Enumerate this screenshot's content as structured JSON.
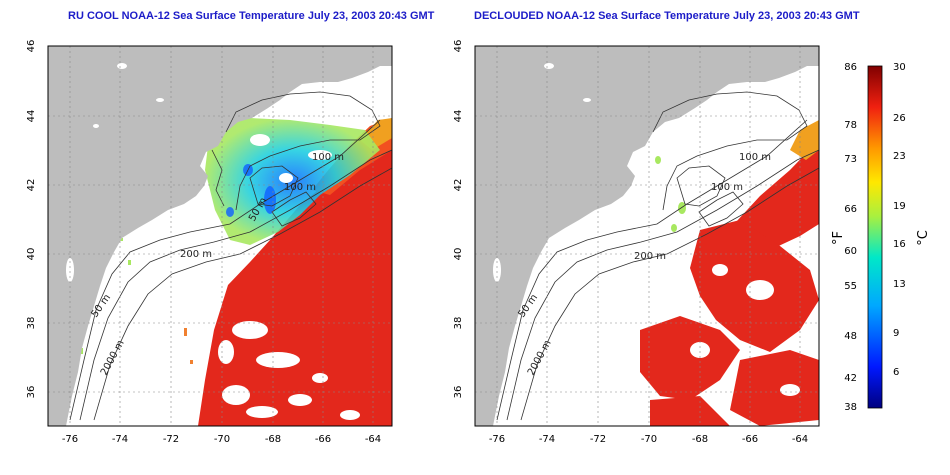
{
  "panels": [
    {
      "title": "RU COOL NOAA-12 Sea Surface Temperature July 23, 2003 20:43 GMT",
      "contour_labels": [
        "100 m",
        "100 m",
        "50 m",
        "200 m",
        "50 m",
        "2000 m"
      ]
    },
    {
      "title": "DECLOUDED NOAA-12 Sea Surface Temperature July 23, 2003 20:43 GMT",
      "contour_labels": [
        "100 m",
        "100 m",
        "200 m",
        "50 m",
        "2000 m"
      ]
    }
  ],
  "axes": {
    "x_ticks": [
      "-76",
      "-74",
      "-72",
      "-70",
      "-68",
      "-66",
      "-64"
    ],
    "y_ticks": [
      "46",
      "44",
      "42",
      "40",
      "38",
      "36"
    ]
  },
  "colorbar": {
    "fahrenheit_label": "°F",
    "celsius_label": "°C",
    "fahrenheit_ticks": [
      "86",
      "78",
      "73",
      "66",
      "60",
      "55",
      "48",
      "42",
      "38"
    ],
    "celsius_ticks": [
      "30",
      "26",
      "23",
      "19",
      "16",
      "13",
      "9",
      "6"
    ]
  },
  "colors": {
    "land": "#bdbdbd",
    "warm_water": "#e3281c",
    "title": "#1c1cc8"
  }
}
